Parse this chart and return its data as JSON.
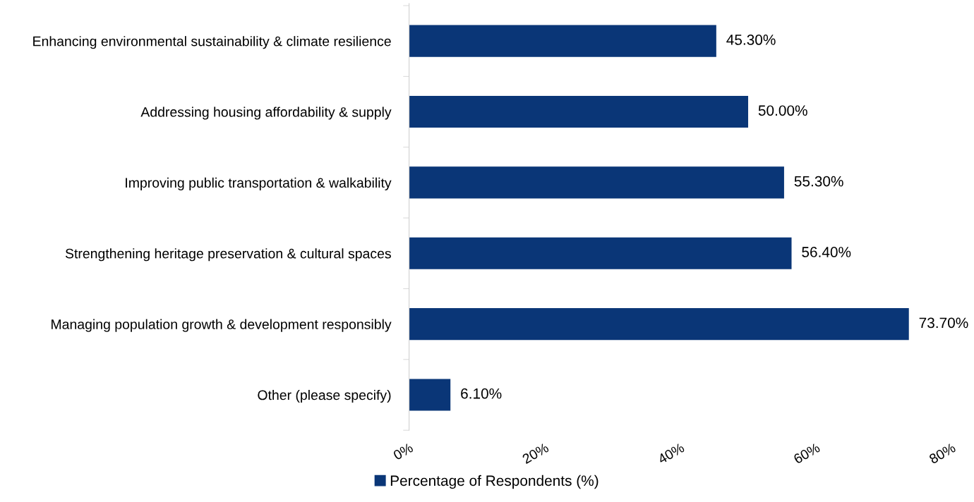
{
  "chart_data": {
    "type": "bar",
    "orientation": "horizontal",
    "categories": [
      "Enhancing environmental sustainability & climate resilience",
      "Addressing housing affordability & supply",
      "Improving public transportation & walkability",
      "Strengthening heritage preservation & cultural spaces",
      "Managing population growth & development responsibly",
      "Other (please specify)"
    ],
    "series": [
      {
        "name": "Percentage of Respondents (%)",
        "color": "#0a3677",
        "values": [
          45.3,
          50.0,
          55.3,
          56.4,
          73.7,
          6.1
        ],
        "value_labels": [
          "45.30%",
          "50.00%",
          "55.30%",
          "56.40%",
          "73.70%",
          "6.10%"
        ]
      }
    ],
    "xlim": [
      0,
      80
    ],
    "xticks": [
      {
        "value": 0,
        "label": "0%"
      },
      {
        "value": 20,
        "label": "20%"
      },
      {
        "value": 40,
        "label": "40%"
      },
      {
        "value": 60,
        "label": "60%"
      },
      {
        "value": 80,
        "label": "80%"
      }
    ],
    "grid": false,
    "legend": "bottom"
  }
}
